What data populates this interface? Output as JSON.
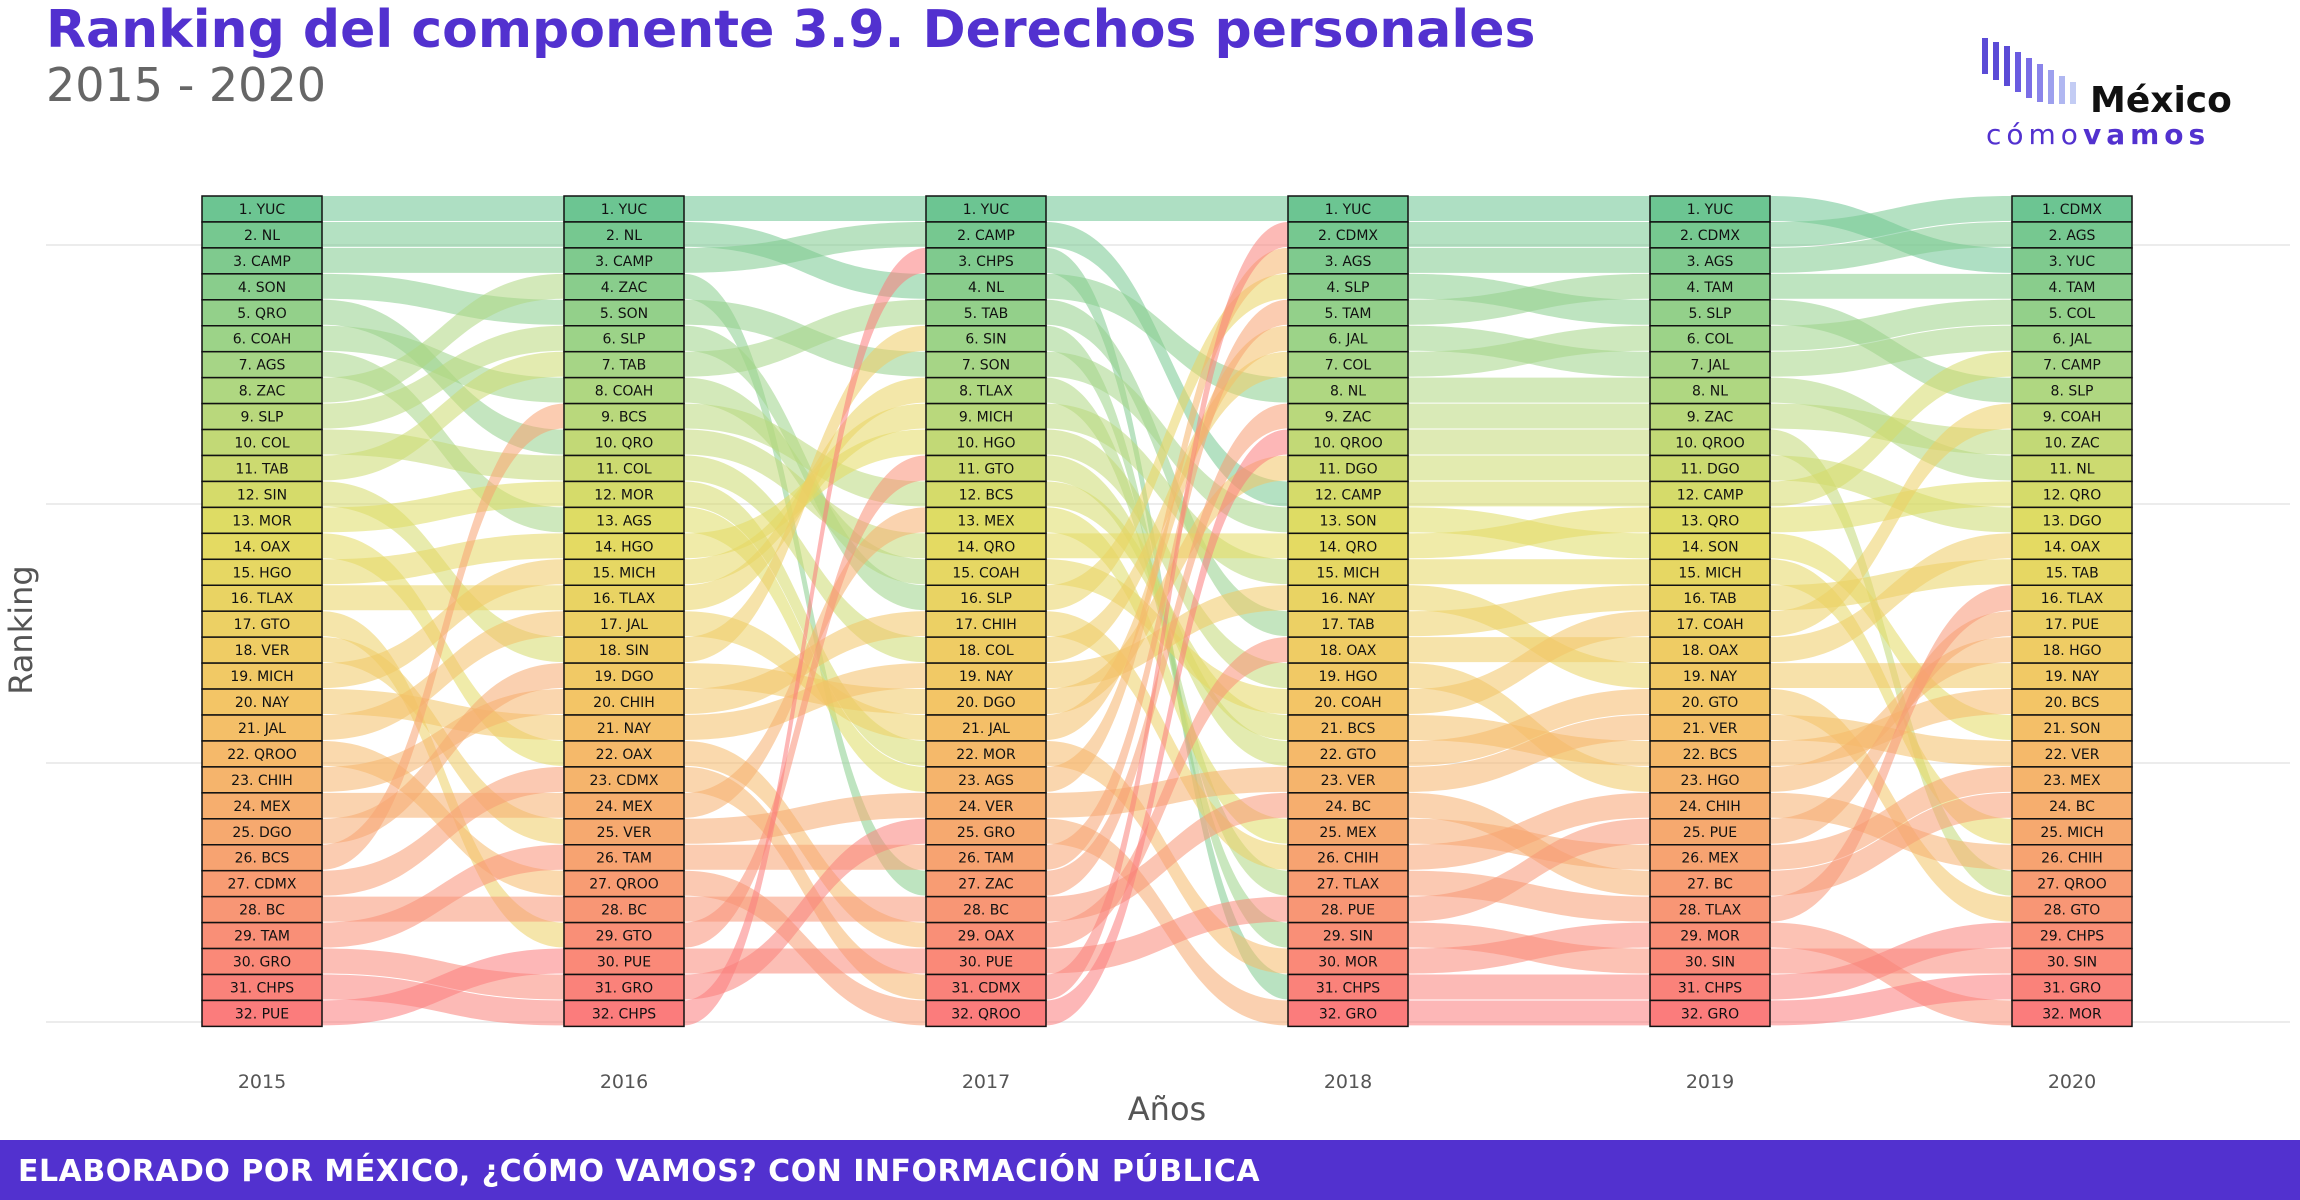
{
  "header": {
    "title": "Ranking del componente 3.9. Derechos personales",
    "subtitle": "2015 - 2020"
  },
  "logo": {
    "name": "México",
    "tag_light": "cómo",
    "tag_bold": "vamos",
    "bar_color": "#5b4bd6"
  },
  "footer": {
    "text": "ELABORADO POR MÉXICO, ¿CÓMO VAMOS? CON INFORMACIÓN PÚBLICA",
    "color": "#5231cf"
  },
  "chart_data": {
    "type": "alluvial",
    "xlabel": "Años",
    "ylabel": "Ranking",
    "years": [
      "2015",
      "2016",
      "2017",
      "2018",
      "2019",
      "2020"
    ],
    "rankings": [
      [
        "YUC",
        "NL",
        "CAMP",
        "SON",
        "QRO",
        "COAH",
        "AGS",
        "ZAC",
        "SLP",
        "COL",
        "TAB",
        "SIN",
        "MOR",
        "OAX",
        "HGO",
        "TLAX",
        "GTO",
        "VER",
        "MICH",
        "NAY",
        "JAL",
        "QROO",
        "CHIH",
        "MEX",
        "DGO",
        "BCS",
        "CDMX",
        "BC",
        "TAM",
        "GRO",
        "CHPS",
        "PUE"
      ],
      [
        "YUC",
        "NL",
        "CAMP",
        "ZAC",
        "SON",
        "SLP",
        "TAB",
        "COAH",
        "BCS",
        "QRO",
        "COL",
        "MOR",
        "AGS",
        "HGO",
        "MICH",
        "TLAX",
        "JAL",
        "SIN",
        "DGO",
        "CHIH",
        "NAY",
        "OAX",
        "CDMX",
        "MEX",
        "VER",
        "TAM",
        "QROO",
        "BC",
        "GTO",
        "PUE",
        "GRO",
        "CHPS"
      ],
      [
        "YUC",
        "CAMP",
        "CHPS",
        "NL",
        "TAB",
        "SIN",
        "SON",
        "TLAX",
        "MICH",
        "HGO",
        "GTO",
        "BCS",
        "MEX",
        "QRO",
        "COAH",
        "SLP",
        "CHIH",
        "COL",
        "NAY",
        "DGO",
        "JAL",
        "MOR",
        "AGS",
        "VER",
        "GRO",
        "TAM",
        "ZAC",
        "BC",
        "OAX",
        "PUE",
        "CDMX",
        "QROO"
      ],
      [
        "YUC",
        "CDMX",
        "AGS",
        "SLP",
        "TAM",
        "JAL",
        "COL",
        "NL",
        "ZAC",
        "QROO",
        "DGO",
        "CAMP",
        "SON",
        "QRO",
        "MICH",
        "NAY",
        "TAB",
        "OAX",
        "HGO",
        "COAH",
        "BCS",
        "GTO",
        "VER",
        "BC",
        "MEX",
        "CHIH",
        "TLAX",
        "PUE",
        "SIN",
        "MOR",
        "CHPS",
        "GRO"
      ],
      [
        "YUC",
        "CDMX",
        "AGS",
        "TAM",
        "SLP",
        "COL",
        "JAL",
        "NL",
        "ZAC",
        "QROO",
        "DGO",
        "CAMP",
        "QRO",
        "SON",
        "MICH",
        "TAB",
        "COAH",
        "OAX",
        "NAY",
        "GTO",
        "VER",
        "BCS",
        "HGO",
        "CHIH",
        "PUE",
        "MEX",
        "BC",
        "TLAX",
        "MOR",
        "SIN",
        "CHPS",
        "GRO"
      ],
      [
        "CDMX",
        "AGS",
        "YUC",
        "TAM",
        "COL",
        "JAL",
        "CAMP",
        "SLP",
        "COAH",
        "ZAC",
        "NL",
        "QRO",
        "DGO",
        "OAX",
        "TAB",
        "TLAX",
        "PUE",
        "HGO",
        "NAY",
        "BCS",
        "SON",
        "VER",
        "MEX",
        "BC",
        "MICH",
        "CHIH",
        "QROO",
        "GTO",
        "CHPS",
        "SIN",
        "GRO",
        "MOR"
      ]
    ],
    "color_scale": [
      "#6cc592",
      "#a8d686",
      "#e2dc62",
      "#f3c765",
      "#f7a471",
      "#fb7c7c"
    ],
    "grid": true
  }
}
